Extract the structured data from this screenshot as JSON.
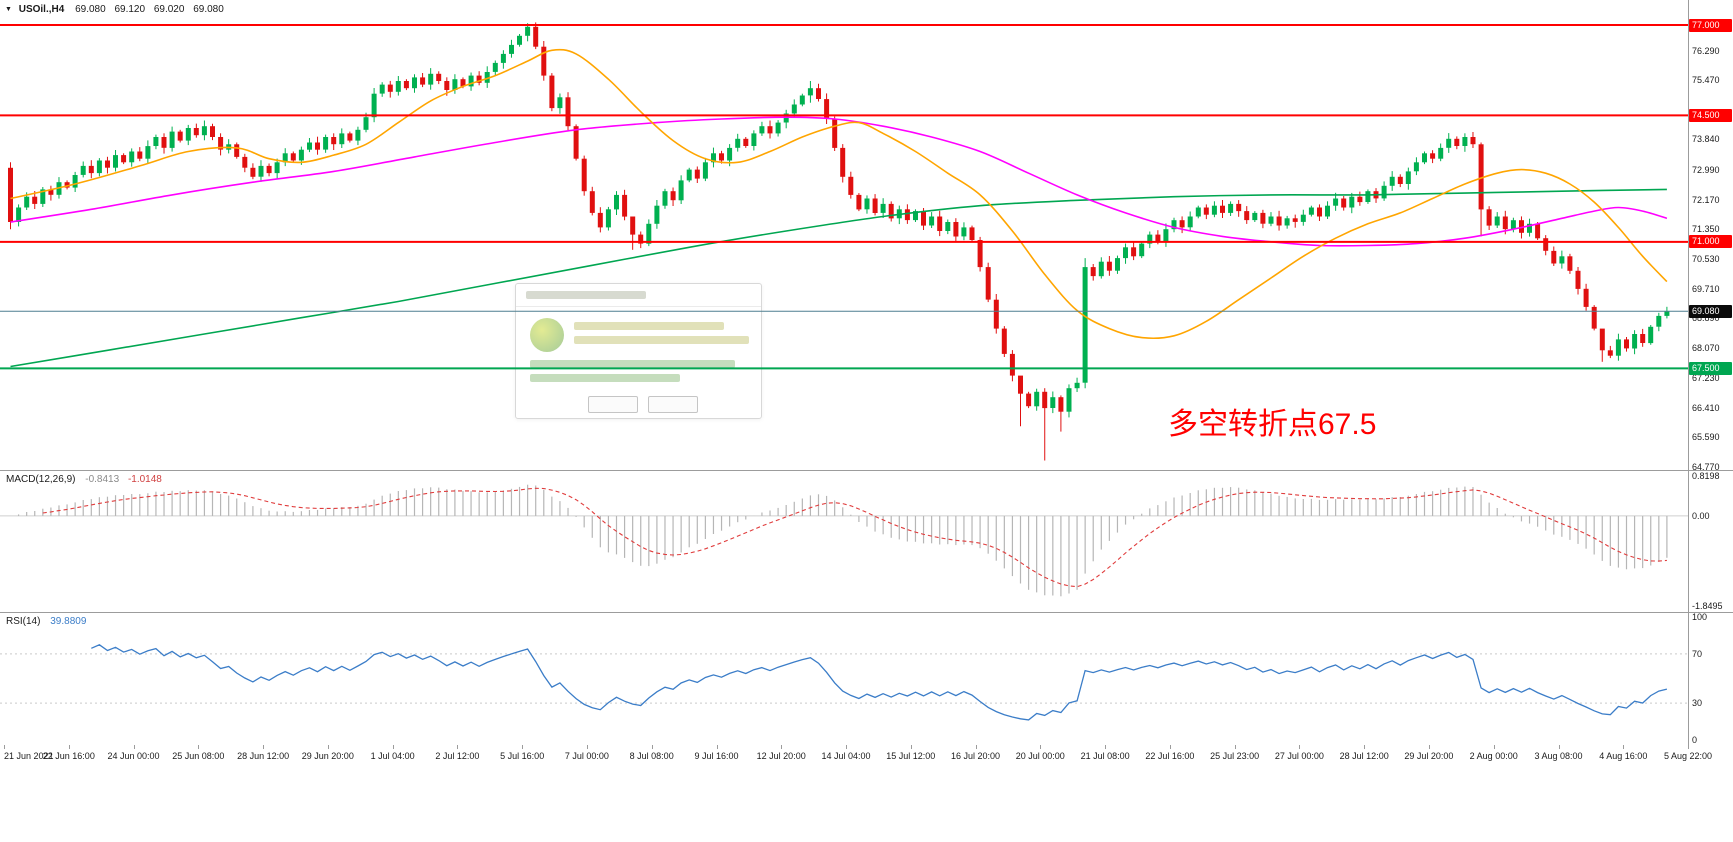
{
  "header": {
    "collapse_icon": "▼",
    "symbol_period": "USOil.,H4",
    "open": "69.080",
    "high": "69.120",
    "low": "69.020",
    "close": "69.080"
  },
  "time_axis": {
    "labels": [
      "21 Jun 2021",
      "22 Jun 16:00",
      "24 Jun 00:00",
      "25 Jun 08:00",
      "28 Jun 12:00",
      "29 Jun 20:00",
      "1 Jul 04:00",
      "2 Jul 12:00",
      "5 Jul 16:00",
      "7 Jul 00:00",
      "8 Jul 08:00",
      "9 Jul 16:00",
      "12 Jul 20:00",
      "14 Jul 04:00",
      "15 Jul 12:00",
      "16 Jul 20:00",
      "20 Jul 00:00",
      "21 Jul 08:00",
      "22 Jul 16:00",
      "25 Jul 23:00",
      "27 Jul 00:00",
      "28 Jul 12:00",
      "29 Jul 20:00",
      "2 Aug 00:00",
      "3 Aug 08:00",
      "4 Aug 16:00",
      "5 Aug 22:00"
    ]
  },
  "chart_data": [
    {
      "type": "candlestick",
      "symbol": "USOil",
      "timeframe": "H4",
      "title": "USOil H4 price chart",
      "y_axis": {
        "plain_ticks": [
          76.29,
          75.47,
          73.84,
          72.99,
          72.17,
          71.35,
          70.53,
          69.71,
          68.89,
          68.07,
          67.23,
          66.41,
          65.59,
          64.77
        ],
        "ylim": [
          64.69,
          77.69
        ]
      },
      "horizontal_lines": [
        {
          "price": 77.0,
          "label": "77.000",
          "color": "#ff0000"
        },
        {
          "price": 74.5,
          "label": "74.500",
          "color": "#ff0000"
        },
        {
          "price": 71.0,
          "label": "71.000",
          "color": "#ff0000"
        },
        {
          "price": 67.5,
          "label": "67.500",
          "color": "#00a651"
        }
      ],
      "current_price_line": {
        "price": 69.08,
        "label": "69.080",
        "line_color": "#4f7f90",
        "box_color": "#0a0a0a"
      },
      "annotation": {
        "text": "多空转折点67.5",
        "color": "#ff0000"
      },
      "candles": {
        "up_color": "#00b050",
        "down_color": "#e01010",
        "first_open": 73.05,
        "closes": [
          71.55,
          71.95,
          72.25,
          72.05,
          72.45,
          72.3,
          72.65,
          72.5,
          72.85,
          73.1,
          72.9,
          73.25,
          73.05,
          73.4,
          73.2,
          73.5,
          73.3,
          73.65,
          73.9,
          73.6,
          74.05,
          73.8,
          74.15,
          73.95,
          74.2,
          73.9,
          73.55,
          73.7,
          73.35,
          73.05,
          72.8,
          73.1,
          72.9,
          73.2,
          73.45,
          73.25,
          73.55,
          73.75,
          73.55,
          73.9,
          73.7,
          74.0,
          73.8,
          74.1,
          74.45,
          75.1,
          75.35,
          75.15,
          75.45,
          75.25,
          75.55,
          75.35,
          75.65,
          75.45,
          75.2,
          75.5,
          75.3,
          75.6,
          75.4,
          75.7,
          75.95,
          76.2,
          76.45,
          76.7,
          76.95,
          76.4,
          75.6,
          74.7,
          75.0,
          74.2,
          73.3,
          72.4,
          71.8,
          71.4,
          71.9,
          72.3,
          71.7,
          71.2,
          70.95,
          71.5,
          72.0,
          72.4,
          72.15,
          72.7,
          73.0,
          72.75,
          73.2,
          73.45,
          73.25,
          73.6,
          73.85,
          73.65,
          74.0,
          74.2,
          74.0,
          74.3,
          74.55,
          74.8,
          75.05,
          75.25,
          74.95,
          74.4,
          73.6,
          72.8,
          72.3,
          71.9,
          72.2,
          71.8,
          72.05,
          71.65,
          71.9,
          71.6,
          71.85,
          71.45,
          71.7,
          71.3,
          71.55,
          71.15,
          71.4,
          71.05,
          70.3,
          69.4,
          68.6,
          67.9,
          67.3,
          66.8,
          66.45,
          66.85,
          66.4,
          66.7,
          66.3,
          66.95,
          67.1,
          70.3,
          70.05,
          70.45,
          70.2,
          70.55,
          70.85,
          70.6,
          70.95,
          71.2,
          71.0,
          71.35,
          71.6,
          71.4,
          71.7,
          71.95,
          71.75,
          72.0,
          71.8,
          72.05,
          71.85,
          71.6,
          71.8,
          71.5,
          71.7,
          71.45,
          71.65,
          71.55,
          71.75,
          71.95,
          71.7,
          72.0,
          72.2,
          71.95,
          72.25,
          72.1,
          72.4,
          72.2,
          72.55,
          72.8,
          72.6,
          72.95,
          73.2,
          73.45,
          73.3,
          73.6,
          73.85,
          73.65,
          73.9,
          73.7,
          71.9,
          71.45,
          71.7,
          71.35,
          71.6,
          71.25,
          71.5,
          71.1,
          70.75,
          70.4,
          70.6,
          70.2,
          69.7,
          69.2,
          68.6,
          68.0,
          67.85,
          68.3,
          68.05,
          68.45,
          68.2,
          68.65,
          68.95,
          69.08
        ],
        "wick_overrides": {
          "0": [
            73.2,
            71.35
          ],
          "64": [
            77.05,
            76.55
          ],
          "77": [
            71.45,
            70.78
          ],
          "99": [
            75.45,
            74.85
          ],
          "125": [
            67.15,
            65.9
          ],
          "128": [
            66.95,
            64.95
          ],
          "130": [
            66.75,
            65.75
          ],
          "133": [
            70.55,
            66.95
          ],
          "182": [
            73.75,
            71.15
          ],
          "197": [
            68.35,
            67.68
          ]
        }
      },
      "moving_averages": [
        {
          "name": "ma-slow",
          "color": "#00a651",
          "points": [
            [
              0,
              67.55
            ],
            [
              12,
              68.0
            ],
            [
              24,
              68.45
            ],
            [
              36,
              68.9
            ],
            [
              48,
              69.35
            ],
            [
              60,
              69.85
            ],
            [
              72,
              70.35
            ],
            [
              84,
              70.85
            ],
            [
              96,
              71.3
            ],
            [
              108,
              71.7
            ],
            [
              120,
              72.0
            ],
            [
              132,
              72.15
            ],
            [
              144,
              72.25
            ],
            [
              156,
              72.3
            ],
            [
              168,
              72.3
            ],
            [
              180,
              72.35
            ],
            [
              192,
              72.4
            ],
            [
              205,
              72.45
            ]
          ]
        },
        {
          "name": "ma-medium",
          "color": "#ff00ff",
          "points": [
            [
              0,
              71.55
            ],
            [
              10,
              71.9
            ],
            [
              20,
              72.3
            ],
            [
              30,
              72.65
            ],
            [
              40,
              72.95
            ],
            [
              50,
              73.35
            ],
            [
              60,
              73.75
            ],
            [
              70,
              74.1
            ],
            [
              80,
              74.3
            ],
            [
              88,
              74.4
            ],
            [
              96,
              74.45
            ],
            [
              102,
              74.4
            ],
            [
              108,
              74.2
            ],
            [
              114,
              73.9
            ],
            [
              120,
              73.5
            ],
            [
              126,
              72.9
            ],
            [
              132,
              72.3
            ],
            [
              138,
              71.8
            ],
            [
              144,
              71.4
            ],
            [
              150,
              71.15
            ],
            [
              156,
              71.0
            ],
            [
              162,
              70.9
            ],
            [
              168,
              70.9
            ],
            [
              174,
              70.95
            ],
            [
              180,
              71.1
            ],
            [
              186,
              71.35
            ],
            [
              192,
              71.65
            ],
            [
              196,
              71.85
            ],
            [
              199,
              71.95
            ],
            [
              202,
              71.85
            ],
            [
              205,
              71.65
            ]
          ]
        },
        {
          "name": "ma-fast",
          "color": "#ffa500",
          "points": [
            [
              0,
              72.2
            ],
            [
              8,
              72.6
            ],
            [
              16,
              73.1
            ],
            [
              22,
              73.5
            ],
            [
              28,
              73.6
            ],
            [
              32,
              73.3
            ],
            [
              36,
              73.2
            ],
            [
              40,
              73.4
            ],
            [
              44,
              73.7
            ],
            [
              48,
              74.3
            ],
            [
              52,
              74.9
            ],
            [
              56,
              75.3
            ],
            [
              60,
              75.6
            ],
            [
              64,
              76.0
            ],
            [
              67,
              76.3
            ],
            [
              70,
              76.2
            ],
            [
              74,
              75.5
            ],
            [
              78,
              74.6
            ],
            [
              82,
              73.8
            ],
            [
              86,
              73.3
            ],
            [
              90,
              73.2
            ],
            [
              94,
              73.5
            ],
            [
              98,
              73.9
            ],
            [
              102,
              74.2
            ],
            [
              105,
              74.3
            ],
            [
              108,
              74.0
            ],
            [
              112,
              73.5
            ],
            [
              116,
              72.9
            ],
            [
              120,
              72.3
            ],
            [
              124,
              71.3
            ],
            [
              128,
              70.1
            ],
            [
              132,
              69.1
            ],
            [
              136,
              68.6
            ],
            [
              140,
              68.35
            ],
            [
              144,
              68.4
            ],
            [
              148,
              68.8
            ],
            [
              152,
              69.4
            ],
            [
              156,
              70.0
            ],
            [
              160,
              70.6
            ],
            [
              164,
              71.1
            ],
            [
              168,
              71.5
            ],
            [
              172,
              71.8
            ],
            [
              176,
              72.2
            ],
            [
              180,
              72.6
            ],
            [
              184,
              72.9
            ],
            [
              187,
              73.0
            ],
            [
              190,
              72.9
            ],
            [
              193,
              72.6
            ],
            [
              196,
              72.1
            ],
            [
              199,
              71.4
            ],
            [
              202,
              70.6
            ],
            [
              205,
              69.9
            ]
          ]
        }
      ]
    },
    {
      "type": "bar",
      "name": "MACD",
      "label": "MACD(12,26,9)",
      "fast": 12,
      "slow": 26,
      "signal": 9,
      "current_values": [
        "-0.8413",
        "-1.0148"
      ],
      "scale_labels": [
        "0.8198",
        "0.00",
        "-1.8495"
      ],
      "y_range": [
        -1.8495,
        0.8198
      ],
      "histogram_color": "#b6b6b6",
      "signal_color": "#e03c3c"
    },
    {
      "type": "line",
      "name": "RSI",
      "label": "RSI(14)",
      "period": 14,
      "current_value": "39.8809",
      "scale_labels": [
        "100",
        "70",
        "30",
        "0"
      ],
      "levels": [
        70,
        30
      ],
      "y_range": [
        0,
        100
      ],
      "line_color": "#3b7dc8"
    }
  ]
}
